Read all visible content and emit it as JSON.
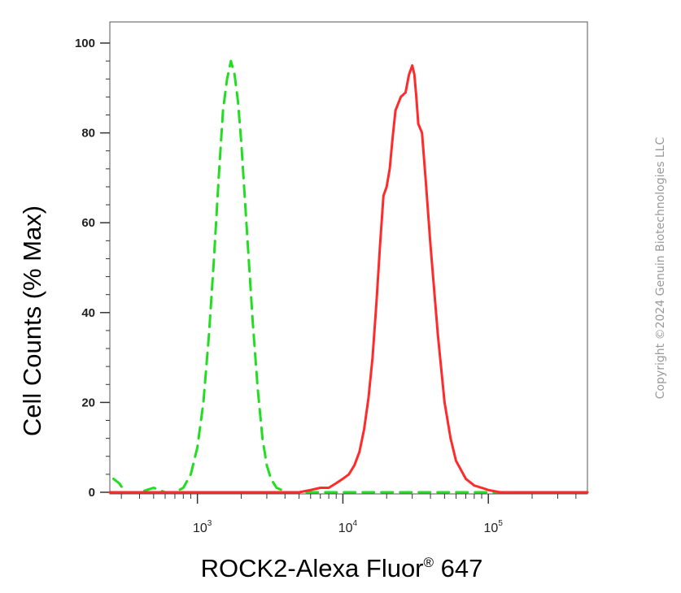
{
  "chart_data": {
    "type": "line",
    "title": "",
    "xlabel": {
      "main": "ROCK2-Alexa Fluor",
      "sup": "®",
      "tail": " 647"
    },
    "ylabel": "Cell Counts (% Max)",
    "x_scale": "log",
    "xlim": [
      250,
      480000
    ],
    "ylim": [
      0,
      100
    ],
    "yticks": [
      "0",
      "20",
      "40",
      "60",
      "80",
      "100"
    ],
    "xticks": [
      {
        "base": "10",
        "exp": "3",
        "value": 1000
      },
      {
        "base": "10",
        "exp": "4",
        "value": 10000
      },
      {
        "base": "10",
        "exp": "5",
        "value": 100000
      }
    ],
    "series": [
      {
        "color": "#22dd22",
        "dashed": true,
        "x": [
          265,
          290,
          320,
          400,
          500,
          600,
          700,
          800,
          900,
          1000,
          1100,
          1200,
          1300,
          1400,
          1500,
          1600,
          1700,
          1800,
          1900,
          2000,
          2200,
          2400,
          2600,
          2800,
          3000,
          3200,
          3500,
          3800,
          4200,
          5000,
          8000,
          30000,
          80000,
          480000
        ],
        "y": [
          3,
          2,
          0,
          0,
          1,
          0,
          0,
          1,
          4,
          10,
          20,
          35,
          52,
          70,
          85,
          92,
          96,
          93,
          87,
          78,
          57,
          38,
          23,
          12,
          6,
          3,
          1,
          0.5,
          0,
          0,
          0,
          0,
          0,
          0
        ]
      },
      {
        "color": "#ff2a2a",
        "dashed": false,
        "x": [
          250,
          3000,
          5000,
          6000,
          7000,
          8000,
          9000,
          10000,
          11000,
          12000,
          13000,
          14000,
          15000,
          16000,
          17000,
          18000,
          19000,
          20000,
          21000,
          22000,
          23000,
          25000,
          27000,
          28500,
          30000,
          31000,
          32000,
          33000,
          35000,
          37000,
          40000,
          45000,
          50000,
          55000,
          60000,
          70000,
          80000,
          90000,
          100000,
          120000,
          150000,
          480000
        ],
        "y": [
          0,
          0,
          0,
          0.5,
          1,
          1,
          2,
          3,
          4,
          6,
          9,
          14,
          21,
          30,
          42,
          55,
          66,
          68,
          72,
          79,
          85,
          88,
          89,
          93,
          95,
          93,
          88,
          82,
          80,
          70,
          55,
          35,
          20,
          12,
          7,
          3,
          1.5,
          1,
          0.5,
          0,
          0,
          0
        ]
      }
    ],
    "grid": false,
    "legend": "none"
  },
  "copyright": "Copyright ©2024 Genuin Biotechnologies LLC"
}
